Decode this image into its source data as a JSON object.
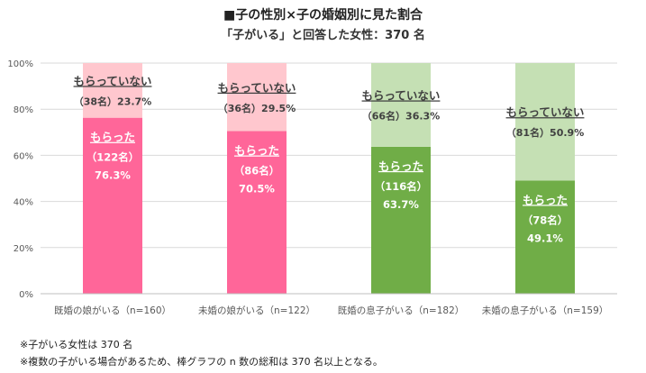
{
  "title": "■子の性別×子の婚姻別に見た割合",
  "subtitle": "「子がいる」と回答した女性：370 名",
  "notes": [
    "※子がいる女性は 370 名",
    "※複数の子がいる場合があるため、棒グラフの n 数の総和は 370 名以上となる。"
  ],
  "chart_data": {
    "type": "bar",
    "stacked": true,
    "ylim": [
      0,
      100
    ],
    "yticks": [
      "0%",
      "20%",
      "40%",
      "60%",
      "80%",
      "100%"
    ],
    "grid": true,
    "categories": [
      "既婚の娘がいる（n=160）",
      "未婚の娘がいる（n=122）",
      "既婚の息子がいる（n=182）",
      "未婚の息子がいる（n=159）"
    ],
    "series": [
      {
        "name": "もらった",
        "values": [
          76.3,
          70.5,
          63.7,
          49.1
        ],
        "counts": [
          "（122名）",
          "（86名）",
          "（116名）",
          "（78名）"
        ],
        "pct_labels": [
          "76.3%",
          "70.5%",
          "63.7%",
          "49.1%"
        ],
        "colors": [
          "#ff6699",
          "#ff6699",
          "#70ad47",
          "#70ad47"
        ]
      },
      {
        "name": "もらっていない",
        "values": [
          23.7,
          29.5,
          36.3,
          50.9
        ],
        "labels": [
          "（38名）23.7%",
          "（36名）29.5%",
          "（66名）36.3%",
          "（81名）50.9%"
        ],
        "colors": [
          "#ffc7ce",
          "#ffc7ce",
          "#c5e0b4",
          "#c5e0b4"
        ]
      }
    ]
  }
}
